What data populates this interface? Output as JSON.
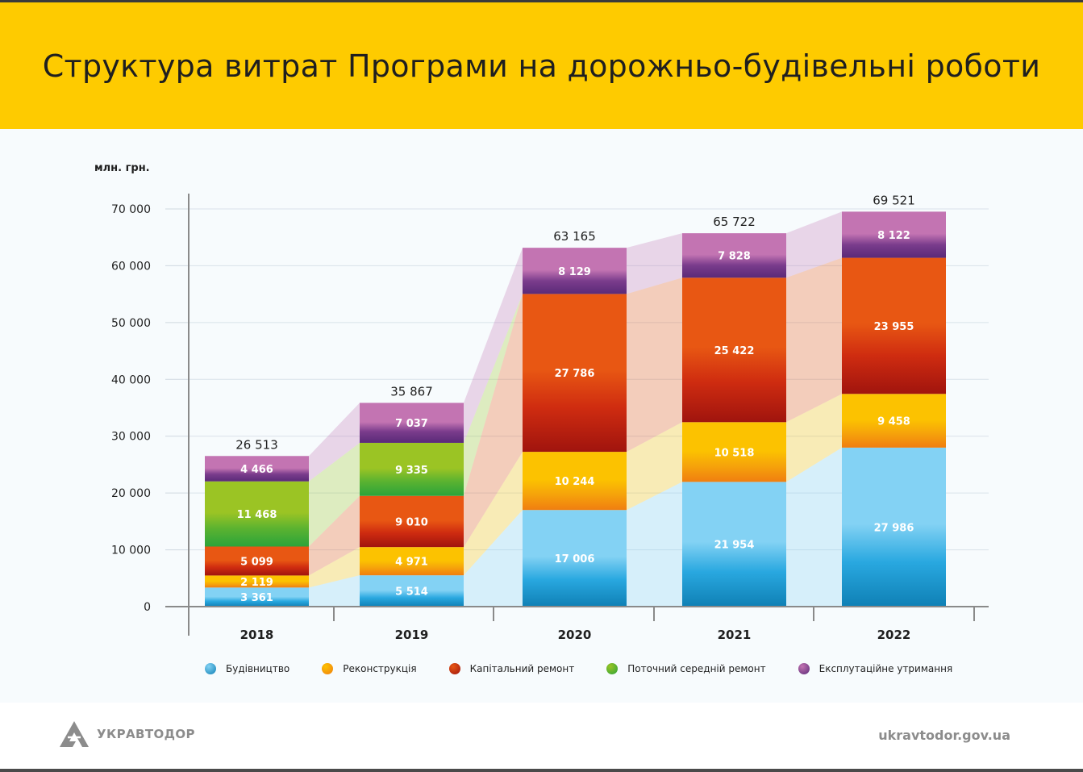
{
  "header": {
    "title": "Структура витрат Програми на дорожньо-будівельні роботи"
  },
  "chart_data": {
    "type": "bar",
    "stacked": true,
    "title": "Структура витрат Програми на дорожньо-будівельні роботи",
    "ylabel": "млн. грн.",
    "ylim": [
      0,
      70000
    ],
    "yticks": [
      0,
      10000,
      20000,
      30000,
      40000,
      50000,
      60000,
      70000
    ],
    "ytick_labels": [
      "0",
      "10 000",
      "20 000",
      "30 000",
      "40 000",
      "50 000",
      "60 000",
      "70 000"
    ],
    "categories": [
      "2018",
      "2019",
      "2020",
      "2021",
      "2022"
    ],
    "totals": [
      26513,
      35867,
      63165,
      65722,
      69521
    ],
    "total_labels": [
      "26 513",
      "35 867",
      "63 165",
      "65 722",
      "69 521"
    ],
    "legend_position": "bottom",
    "grid": true,
    "series": [
      {
        "name": "Будівництво",
        "values": [
          3361,
          5514,
          17006,
          21954,
          27986
        ],
        "labels": [
          "3 361",
          "5 514",
          "17 006",
          "21 954",
          "27 986"
        ],
        "color": "#29a8e0",
        "top_color": "#83d2f4",
        "bottom_color": "#0f80b5"
      },
      {
        "name": "Реконструкція",
        "values": [
          2119,
          4971,
          10244,
          10518,
          9458
        ],
        "labels": [
          "2 119",
          "4 971",
          "10 244",
          "10 518",
          "9 458"
        ],
        "color": "#f6a50a",
        "top_color": "#fcc200",
        "bottom_color": "#f07e10"
      },
      {
        "name": "Капітальний ремонт",
        "values": [
          5099,
          9010,
          27786,
          25422,
          23955
        ],
        "labels": [
          "5 099",
          "9 010",
          "27 786",
          "25 422",
          "23 955"
        ],
        "color": "#cf2c10",
        "top_color": "#e85713",
        "bottom_color": "#a0140e"
      },
      {
        "name": "Поточний середній ремонт",
        "values": [
          11468,
          9335,
          0,
          0,
          0
        ],
        "labels": [
          "11 468",
          "9 335",
          "",
          "",
          ""
        ],
        "color": "#5cb330",
        "top_color": "#9bc424",
        "bottom_color": "#2ba43a"
      },
      {
        "name": "Експлутаційне утримання",
        "values": [
          4466,
          7037,
          8129,
          7828,
          8122
        ],
        "labels": [
          "4 466",
          "7 037",
          "8 129",
          "7 828",
          "8 122"
        ],
        "color": "#7a3c8c",
        "top_color": "#c374b2",
        "bottom_color": "#5a2a78"
      }
    ]
  },
  "footer": {
    "brand": "УКРАВТОДОР",
    "site": "ukravtodor.gov.ua"
  },
  "icons": {
    "brand_logo": "ukravtodor-logo-icon"
  }
}
